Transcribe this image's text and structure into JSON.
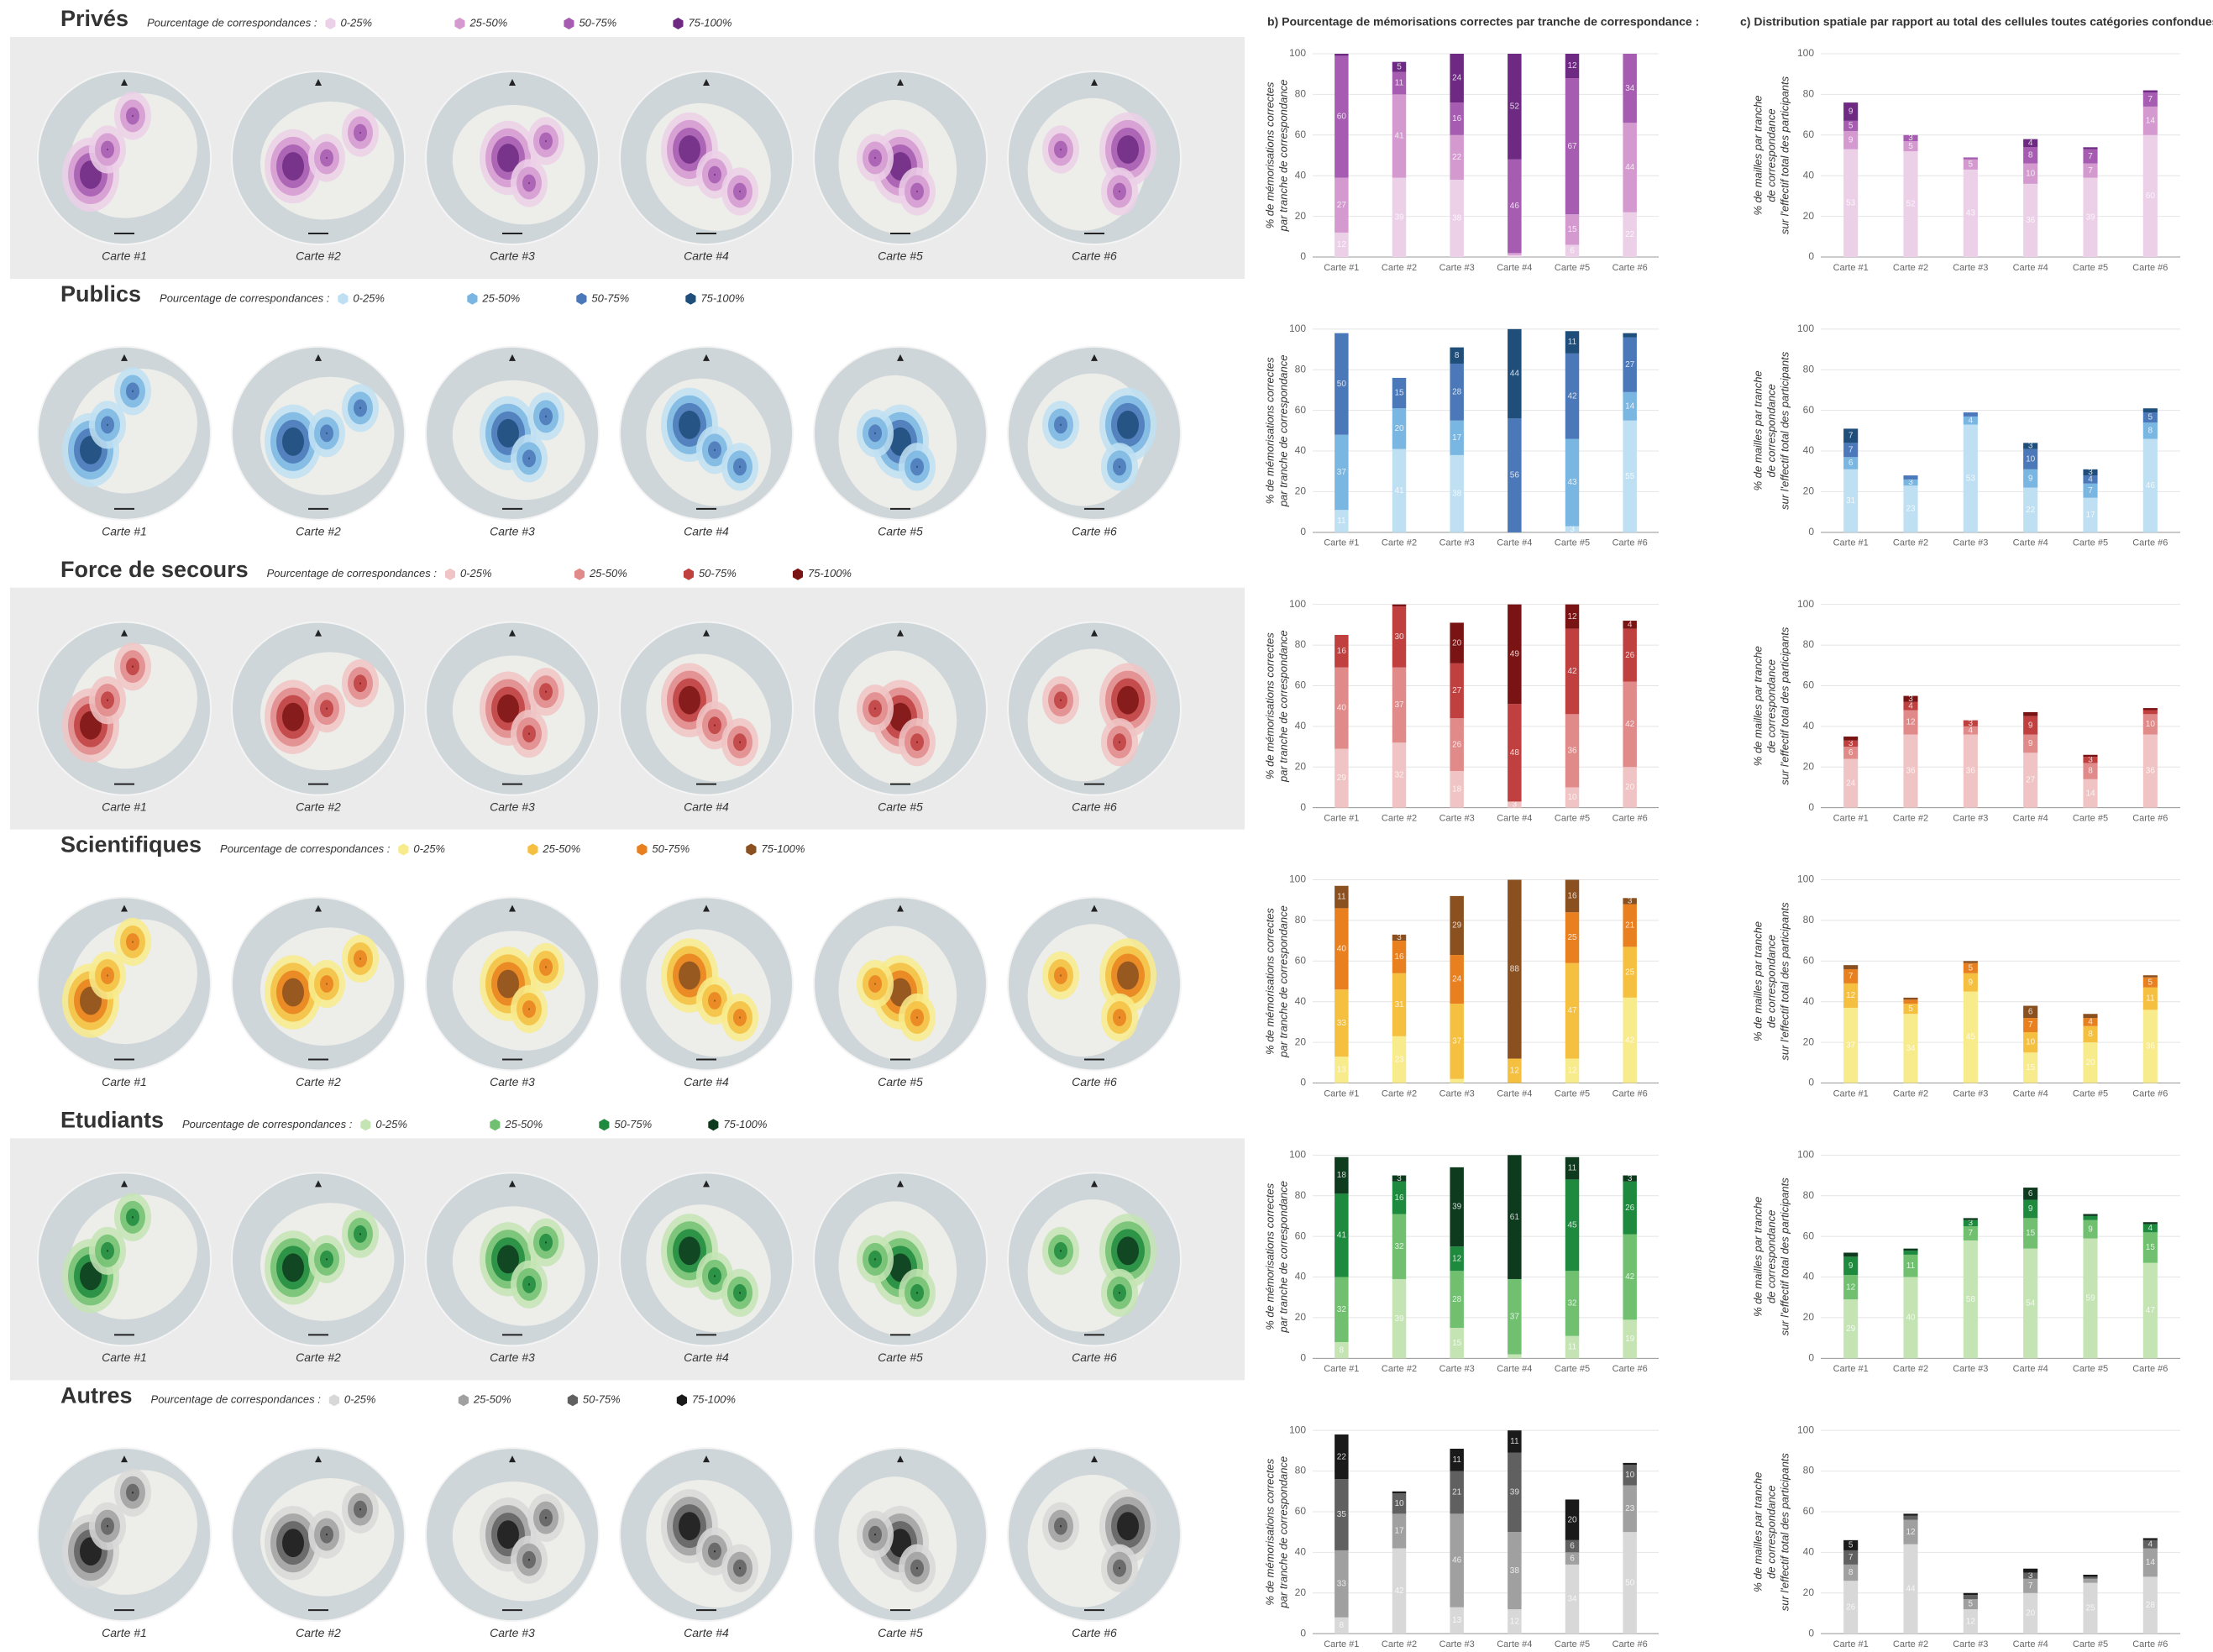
{
  "panel_titles": {
    "b": "b) Pourcentage de mémorisations correctes par tranche de correspondance :",
    "c": "c) Distribution spatiale par rapport au total des cellules toutes catégories confondues :"
  },
  "groups": [
    {
      "title": "Privés",
      "legend_title": "Pourcentage de correspondances :"
    },
    {
      "title": "Publics",
      "legend_title": "Pourcentage de correspondances :"
    },
    {
      "title": "Force de secours",
      "legend_title": "Pourcentage de correspondances :"
    },
    {
      "title": "Scientifiques",
      "legend_title": "Pourcentage de correspondances :"
    },
    {
      "title": "Etudiants",
      "legend_title": "Pourcentage de correspondances :"
    },
    {
      "title": "Autres",
      "legend_title": "Pourcentage de correspondances :"
    }
  ],
  "chart_data": [
    {
      "type": "bar",
      "stacked": true,
      "ylabel": [
        "% de mémorisations correctes",
        "par tranche de correspondance"
      ],
      "categories": [
        "Carte #1",
        "Carte #2",
        "Carte #3",
        "Carte #4",
        "Carte #5",
        "Carte #6"
      ],
      "ylim": [
        0,
        100
      ],
      "yticks": [
        0,
        20,
        40,
        60,
        80,
        100
      ],
      "grid": true,
      "series": [
        {
          "name": "0-25%",
          "color": "#ecd0e8",
          "values": [
            12,
            39,
            38,
            1,
            6,
            22
          ]
        },
        {
          "name": "25-50%",
          "color": "#d49ad0",
          "values": [
            27,
            41,
            22,
            1,
            15,
            44
          ]
        },
        {
          "name": "50-75%",
          "color": "#a65cb0",
          "values": [
            60,
            11,
            16,
            46,
            67,
            34
          ]
        },
        {
          "name": "75-100%",
          "color": "#6e2a82",
          "values": [
            1,
            5,
            24,
            52,
            12,
            0
          ]
        }
      ]
    },
    {
      "type": "bar",
      "stacked": true,
      "ylabel": [
        "% de mailles par tranche",
        "de correspondance",
        "sur l'effectif total des participants"
      ],
      "categories": [
        "Carte #1",
        "Carte #2",
        "Carte #3",
        "Carte #4",
        "Carte #5",
        "Carte #6"
      ],
      "ylim": [
        0,
        100
      ],
      "yticks": [
        0,
        20,
        40,
        60,
        80,
        100
      ],
      "grid": true,
      "series": [
        {
          "color": "#ecd0e8",
          "values": [
            53,
            52,
            43,
            36,
            39,
            60
          ]
        },
        {
          "color": "#d49ad0",
          "values": [
            9,
            5,
            5,
            10,
            7,
            14
          ]
        },
        {
          "color": "#a65cb0",
          "values": [
            5,
            3,
            1,
            8,
            7,
            7
          ]
        },
        {
          "color": "#6e2a82",
          "values": [
            9,
            0,
            0,
            4,
            1,
            1
          ]
        }
      ]
    },
    {
      "type": "bar",
      "stacked": true,
      "ylabel": [
        "% de mémorisations correctes",
        "par tranche de correspondance"
      ],
      "categories": [
        "Carte #1",
        "Carte #2",
        "Carte #3",
        "Carte #4",
        "Carte #5",
        "Carte #6"
      ],
      "ylim": [
        0,
        100
      ],
      "yticks": [
        0,
        20,
        40,
        60,
        80,
        100
      ],
      "grid": true,
      "series": [
        {
          "name": "0-25%",
          "color": "#bfe0f2",
          "values": [
            11,
            41,
            38,
            0,
            3,
            55
          ]
        },
        {
          "name": "25-50%",
          "color": "#7ab6e2",
          "values": [
            37,
            20,
            17,
            0,
            43,
            14
          ]
        },
        {
          "name": "50-75%",
          "color": "#4a78b8",
          "values": [
            50,
            15,
            28,
            56,
            42,
            27
          ]
        },
        {
          "name": "75-100%",
          "color": "#1f4e7a",
          "values": [
            0,
            0,
            8,
            44,
            11,
            2
          ]
        }
      ]
    },
    {
      "type": "bar",
      "stacked": true,
      "ylabel": [
        "% de mailles par tranche",
        "de correspondance",
        "sur l'effectif total des participants"
      ],
      "categories": [
        "Carte #1",
        "Carte #2",
        "Carte #3",
        "Carte #4",
        "Carte #5",
        "Carte #6"
      ],
      "ylim": [
        0,
        100
      ],
      "yticks": [
        0,
        20,
        40,
        60,
        80,
        100
      ],
      "grid": true,
      "series": [
        {
          "color": "#bfe0f2",
          "values": [
            31,
            23,
            53,
            22,
            17,
            46
          ]
        },
        {
          "color": "#7ab6e2",
          "values": [
            6,
            3,
            4,
            9,
            7,
            8
          ]
        },
        {
          "color": "#4a78b8",
          "values": [
            7,
            2,
            2,
            10,
            4,
            5
          ]
        },
        {
          "color": "#1f4e7a",
          "values": [
            7,
            0,
            0,
            3,
            3,
            2
          ]
        }
      ]
    },
    {
      "type": "bar",
      "stacked": true,
      "ylabel": [
        "% de mémorisations correctes",
        "par tranche de correspondance"
      ],
      "categories": [
        "Carte #1",
        "Carte #2",
        "Carte #3",
        "Carte #4",
        "Carte #5",
        "Carte #6"
      ],
      "ylim": [
        0,
        100
      ],
      "yticks": [
        0,
        20,
        40,
        60,
        80,
        100
      ],
      "grid": true,
      "series": [
        {
          "name": "0-25%",
          "color": "#f0c4c4",
          "values": [
            29,
            32,
            18,
            3,
            10,
            20
          ]
        },
        {
          "name": "25-50%",
          "color": "#e08a8a",
          "values": [
            40,
            37,
            26,
            0,
            36,
            42
          ]
        },
        {
          "name": "50-75%",
          "color": "#c04040",
          "values": [
            16,
            30,
            27,
            48,
            42,
            26
          ]
        },
        {
          "name": "75-100%",
          "color": "#7a1414",
          "values": [
            0,
            1,
            20,
            49,
            12,
            4
          ]
        }
      ]
    },
    {
      "type": "bar",
      "stacked": true,
      "ylabel": [
        "% de mailles par tranche",
        "de correspondance",
        "sur l'effectif total des participants"
      ],
      "categories": [
        "Carte #1",
        "Carte #2",
        "Carte #3",
        "Carte #4",
        "Carte #5",
        "Carte #6"
      ],
      "ylim": [
        0,
        100
      ],
      "yticks": [
        0,
        20,
        40,
        60,
        80,
        100
      ],
      "grid": true,
      "series": [
        {
          "color": "#f0c4c4",
          "values": [
            24,
            36,
            36,
            27,
            14,
            36
          ]
        },
        {
          "color": "#e08a8a",
          "values": [
            6,
            12,
            4,
            9,
            8,
            10
          ]
        },
        {
          "color": "#c04040",
          "values": [
            3,
            4,
            3,
            9,
            3,
            2
          ]
        },
        {
          "color": "#7a1414",
          "values": [
            2,
            3,
            0,
            2,
            1,
            1
          ]
        }
      ]
    },
    {
      "type": "bar",
      "stacked": true,
      "ylabel": [
        "% de mémorisations correctes",
        "par tranche de correspondance"
      ],
      "categories": [
        "Carte #1",
        "Carte #2",
        "Carte #3",
        "Carte #4",
        "Carte #5",
        "Carte #6"
      ],
      "ylim": [
        0,
        100
      ],
      "yticks": [
        0,
        20,
        40,
        60,
        80,
        100
      ],
      "grid": true,
      "series": [
        {
          "name": "0-25%",
          "color": "#f8eb8c",
          "values": [
            13,
            23,
            2,
            0,
            12,
            42
          ]
        },
        {
          "name": "25-50%",
          "color": "#f5c040",
          "values": [
            33,
            31,
            37,
            12,
            47,
            25
          ]
        },
        {
          "name": "50-75%",
          "color": "#e88020",
          "values": [
            40,
            16,
            24,
            0,
            25,
            21
          ]
        },
        {
          "name": "75-100%",
          "color": "#8a5020",
          "values": [
            11,
            3,
            29,
            88,
            16,
            3
          ]
        }
      ]
    },
    {
      "type": "bar",
      "stacked": true,
      "ylabel": [
        "% de mailles par tranche",
        "de correspondance",
        "sur l'effectif total des participants"
      ],
      "categories": [
        "Carte #1",
        "Carte #2",
        "Carte #3",
        "Carte #4",
        "Carte #5",
        "Carte #6"
      ],
      "ylim": [
        0,
        100
      ],
      "yticks": [
        0,
        20,
        40,
        60,
        80,
        100
      ],
      "grid": true,
      "series": [
        {
          "color": "#f8eb8c",
          "values": [
            37,
            34,
            45,
            15,
            20,
            36
          ]
        },
        {
          "color": "#f5c040",
          "values": [
            12,
            5,
            9,
            10,
            8,
            11
          ]
        },
        {
          "color": "#e88020",
          "values": [
            7,
            2,
            5,
            7,
            4,
            5
          ]
        },
        {
          "color": "#8a5020",
          "values": [
            2,
            1,
            1,
            6,
            2,
            1
          ]
        }
      ]
    },
    {
      "type": "bar",
      "stacked": true,
      "ylabel": [
        "% de mémorisations correctes",
        "par tranche de correspondance"
      ],
      "categories": [
        "Carte #1",
        "Carte #2",
        "Carte #3",
        "Carte #4",
        "Carte #5",
        "Carte #6"
      ],
      "ylim": [
        0,
        100
      ],
      "yticks": [
        0,
        20,
        40,
        60,
        80,
        100
      ],
      "grid": true,
      "series": [
        {
          "name": "0-25%",
          "color": "#c4e4b4",
          "values": [
            8,
            39,
            15,
            2,
            11,
            19
          ]
        },
        {
          "name": "25-50%",
          "color": "#70c070",
          "values": [
            32,
            32,
            28,
            37,
            32,
            42
          ]
        },
        {
          "name": "50-75%",
          "color": "#1e8a3e",
          "values": [
            41,
            16,
            12,
            0,
            45,
            26
          ]
        },
        {
          "name": "75-100%",
          "color": "#0e3a1e",
          "values": [
            18,
            3,
            39,
            61,
            11,
            3
          ]
        }
      ]
    },
    {
      "type": "bar",
      "stacked": true,
      "ylabel": [
        "% de mailles par tranche",
        "de correspondance",
        "sur l'effectif total des participants"
      ],
      "categories": [
        "Carte #1",
        "Carte #2",
        "Carte #3",
        "Carte #4",
        "Carte #5",
        "Carte #6"
      ],
      "ylim": [
        0,
        100
      ],
      "yticks": [
        0,
        20,
        40,
        60,
        80,
        100
      ],
      "grid": true,
      "series": [
        {
          "color": "#c4e4b4",
          "values": [
            29,
            40,
            58,
            54,
            59,
            47
          ]
        },
        {
          "color": "#70c070",
          "values": [
            12,
            11,
            7,
            15,
            9,
            15
          ]
        },
        {
          "color": "#1e8a3e",
          "values": [
            9,
            2,
            3,
            9,
            2,
            4
          ]
        },
        {
          "color": "#0e3a1e",
          "values": [
            2,
            1,
            1,
            6,
            1,
            1
          ]
        }
      ]
    },
    {
      "type": "bar",
      "stacked": true,
      "ylabel": [
        "% de mémorisations correctes",
        "par tranche de correspondance"
      ],
      "categories": [
        "Carte #1",
        "Carte #2",
        "Carte #3",
        "Carte #4",
        "Carte #5",
        "Carte #6"
      ],
      "ylim": [
        0,
        100
      ],
      "yticks": [
        0,
        20,
        40,
        60,
        80,
        100
      ],
      "grid": true,
      "series": [
        {
          "name": "0-25%",
          "color": "#d8d8d8",
          "values": [
            8,
            42,
            13,
            12,
            34,
            50
          ]
        },
        {
          "name": "25-50%",
          "color": "#a0a0a0",
          "values": [
            33,
            17,
            46,
            38,
            6,
            23
          ]
        },
        {
          "name": "50-75%",
          "color": "#606060",
          "values": [
            35,
            10,
            21,
            39,
            6,
            10
          ]
        },
        {
          "name": "75-100%",
          "color": "#1a1a1a",
          "values": [
            22,
            1,
            11,
            11,
            20,
            1
          ]
        }
      ]
    },
    {
      "type": "bar",
      "stacked": true,
      "ylabel": [
        "% de mailles par tranche",
        "de correspondance",
        "sur l'effectif total des participants"
      ],
      "categories": [
        "Carte #1",
        "Carte #2",
        "Carte #3",
        "Carte #4",
        "Carte #5",
        "Carte #6"
      ],
      "ylim": [
        0,
        100
      ],
      "yticks": [
        0,
        20,
        40,
        60,
        80,
        100
      ],
      "grid": true,
      "series": [
        {
          "color": "#d8d8d8",
          "values": [
            26,
            44,
            12,
            20,
            25,
            28
          ]
        },
        {
          "color": "#a0a0a0",
          "values": [
            8,
            12,
            5,
            7,
            2,
            14
          ]
        },
        {
          "color": "#606060",
          "values": [
            7,
            2,
            2,
            3,
            1,
            4
          ]
        },
        {
          "color": "#1a1a1a",
          "values": [
            5,
            1,
            1,
            2,
            1,
            1
          ]
        }
      ]
    }
  ]
}
